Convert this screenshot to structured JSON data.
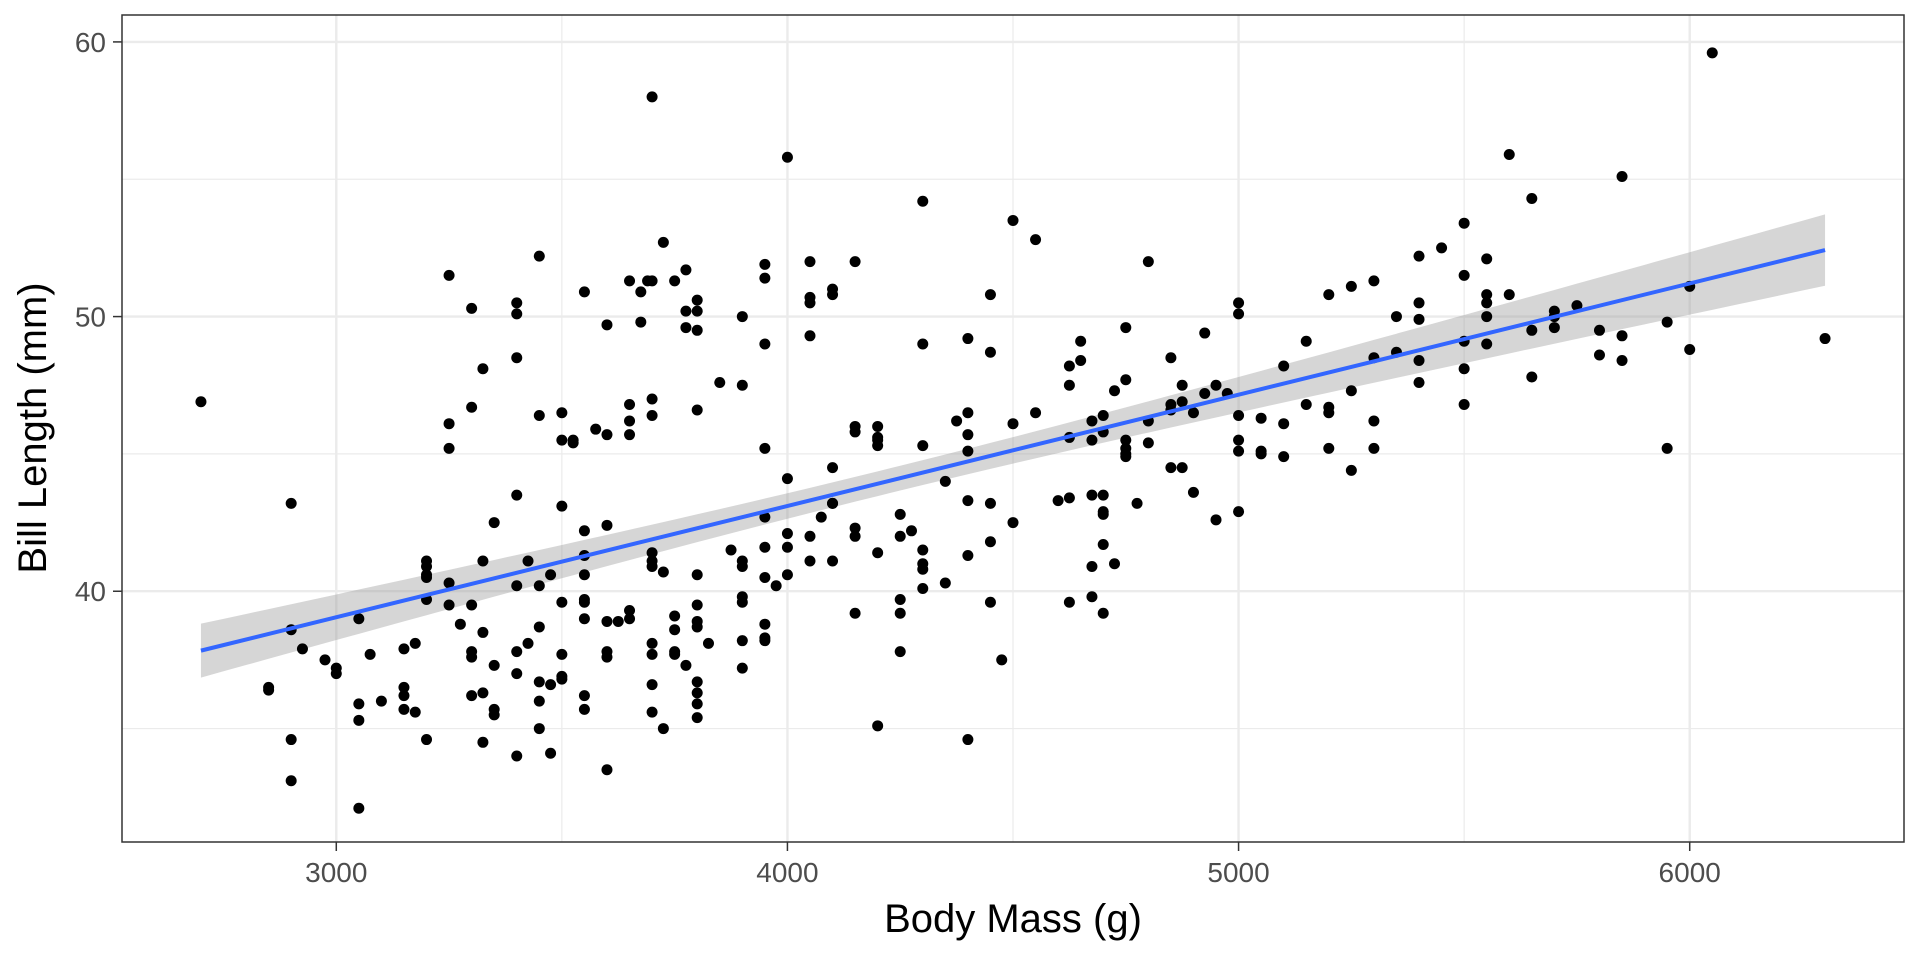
{
  "chart_data": {
    "type": "scatter",
    "title": "",
    "xlabel": "Body Mass (g)",
    "ylabel": "Bill Length (mm)",
    "xlim": [
      2525,
      6475
    ],
    "ylim": [
      30.87,
      60.98
    ],
    "x_ticks": [
      3000,
      4000,
      5000,
      6000
    ],
    "x_tick_labels": [
      "3000",
      "4000",
      "5000",
      "6000"
    ],
    "y_ticks": [
      40,
      50,
      60
    ],
    "y_tick_labels": [
      "40",
      "50",
      "60"
    ],
    "grid": true,
    "legend": "none",
    "colors": {
      "points": "#000000",
      "line": "#3366FF",
      "ribbon": "#999999",
      "grid": "#EBEBEB",
      "panel_border": "#333333"
    },
    "regression": {
      "method": "lm",
      "intercept": 26.9,
      "slope": 0.004051,
      "x_range": [
        2700,
        6300
      ],
      "se_halfwidth_center": 0.45,
      "se_x_mean": 4202,
      "se_k": 3.37e-07
    },
    "points": [
      [
        2700,
        46.9
      ],
      [
        2850,
        36.5
      ],
      [
        2850,
        36.4
      ],
      [
        2900,
        43.2
      ],
      [
        2900,
        38.6
      ],
      [
        2900,
        34.6
      ],
      [
        2900,
        33.1
      ],
      [
        2925,
        37.9
      ],
      [
        2975,
        37.5
      ],
      [
        3000,
        37.2
      ],
      [
        3000,
        37.0
      ],
      [
        3050,
        39.0
      ],
      [
        3050,
        35.9
      ],
      [
        3050,
        35.3
      ],
      [
        3050,
        32.1
      ],
      [
        3075,
        37.7
      ],
      [
        3100,
        36.0
      ],
      [
        3150,
        37.9
      ],
      [
        3150,
        36.5
      ],
      [
        3150,
        36.2
      ],
      [
        3150,
        35.7
      ],
      [
        3175,
        38.1
      ],
      [
        3175,
        35.6
      ],
      [
        3200,
        41.1
      ],
      [
        3200,
        40.9
      ],
      [
        3200,
        40.6
      ],
      [
        3200,
        40.5
      ],
      [
        3200,
        39.7
      ],
      [
        3200,
        34.6
      ],
      [
        3250,
        51.5
      ],
      [
        3250,
        46.1
      ],
      [
        3250,
        45.2
      ],
      [
        3250,
        40.3
      ],
      [
        3250,
        39.5
      ],
      [
        3275,
        38.8
      ],
      [
        3300,
        50.3
      ],
      [
        3300,
        46.7
      ],
      [
        3300,
        39.5
      ],
      [
        3300,
        37.8
      ],
      [
        3300,
        37.6
      ],
      [
        3300,
        36.2
      ],
      [
        3325,
        48.1
      ],
      [
        3325,
        41.1
      ],
      [
        3325,
        38.5
      ],
      [
        3325,
        36.3
      ],
      [
        3325,
        34.5
      ],
      [
        3350,
        42.5
      ],
      [
        3350,
        37.3
      ],
      [
        3350,
        35.7
      ],
      [
        3350,
        35.5
      ],
      [
        3400,
        50.5
      ],
      [
        3400,
        50.1
      ],
      [
        3400,
        48.5
      ],
      [
        3400,
        43.5
      ],
      [
        3400,
        40.2
      ],
      [
        3400,
        37.8
      ],
      [
        3400,
        37.0
      ],
      [
        3400,
        34.0
      ],
      [
        3425,
        41.1
      ],
      [
        3425,
        38.1
      ],
      [
        3450,
        52.2
      ],
      [
        3450,
        46.4
      ],
      [
        3450,
        40.2
      ],
      [
        3450,
        38.7
      ],
      [
        3450,
        36.7
      ],
      [
        3450,
        36.0
      ],
      [
        3450,
        35.0
      ],
      [
        3475,
        40.6
      ],
      [
        3475,
        36.6
      ],
      [
        3475,
        34.1
      ],
      [
        3500,
        46.5
      ],
      [
        3500,
        45.5
      ],
      [
        3500,
        43.1
      ],
      [
        3500,
        39.6
      ],
      [
        3500,
        37.7
      ],
      [
        3500,
        36.9
      ],
      [
        3500,
        36.8
      ],
      [
        3525,
        45.5
      ],
      [
        3525,
        45.4
      ],
      [
        3550,
        50.9
      ],
      [
        3550,
        42.2
      ],
      [
        3550,
        41.3
      ],
      [
        3550,
        40.6
      ],
      [
        3550,
        39.7
      ],
      [
        3550,
        39.6
      ],
      [
        3550,
        39.0
      ],
      [
        3550,
        36.2
      ],
      [
        3550,
        35.7
      ],
      [
        3575,
        45.9
      ],
      [
        3600,
        49.7
      ],
      [
        3600,
        45.7
      ],
      [
        3600,
        42.4
      ],
      [
        3600,
        38.9
      ],
      [
        3600,
        37.8
      ],
      [
        3600,
        37.6
      ],
      [
        3600,
        33.5
      ],
      [
        3625,
        38.9
      ],
      [
        3650,
        51.3
      ],
      [
        3650,
        46.8
      ],
      [
        3650,
        46.2
      ],
      [
        3650,
        45.7
      ],
      [
        3650,
        39.3
      ],
      [
        3650,
        39.0
      ],
      [
        3675,
        50.9
      ],
      [
        3675,
        49.8
      ],
      [
        3690,
        51.3
      ],
      [
        3700,
        58.0
      ],
      [
        3700,
        51.3
      ],
      [
        3700,
        47.0
      ],
      [
        3700,
        46.4
      ],
      [
        3700,
        41.4
      ],
      [
        3700,
        41.1
      ],
      [
        3700,
        40.9
      ],
      [
        3700,
        38.1
      ],
      [
        3700,
        37.7
      ],
      [
        3700,
        36.6
      ],
      [
        3700,
        35.6
      ],
      [
        3725,
        52.7
      ],
      [
        3725,
        40.7
      ],
      [
        3725,
        35.0
      ],
      [
        3750,
        51.3
      ],
      [
        3750,
        39.1
      ],
      [
        3750,
        38.6
      ],
      [
        3750,
        37.8
      ],
      [
        3750,
        37.7
      ],
      [
        3775,
        51.7
      ],
      [
        3775,
        50.2
      ],
      [
        3775,
        49.6
      ],
      [
        3775,
        37.3
      ],
      [
        3800,
        50.6
      ],
      [
        3800,
        50.2
      ],
      [
        3800,
        49.5
      ],
      [
        3800,
        46.6
      ],
      [
        3800,
        40.6
      ],
      [
        3800,
        39.5
      ],
      [
        3800,
        38.9
      ],
      [
        3800,
        38.7
      ],
      [
        3800,
        36.7
      ],
      [
        3800,
        36.3
      ],
      [
        3800,
        35.9
      ],
      [
        3800,
        35.4
      ],
      [
        3825,
        38.1
      ],
      [
        3850,
        47.6
      ],
      [
        3875,
        41.5
      ],
      [
        3900,
        50.0
      ],
      [
        3900,
        47.5
      ],
      [
        3900,
        41.1
      ],
      [
        3900,
        40.9
      ],
      [
        3900,
        39.8
      ],
      [
        3900,
        39.6
      ],
      [
        3900,
        38.2
      ],
      [
        3900,
        37.2
      ],
      [
        3950,
        51.9
      ],
      [
        3950,
        51.4
      ],
      [
        3950,
        49.0
      ],
      [
        3950,
        45.2
      ],
      [
        3950,
        42.7
      ],
      [
        3950,
        41.6
      ],
      [
        3950,
        40.5
      ],
      [
        3950,
        38.8
      ],
      [
        3950,
        38.3
      ],
      [
        3950,
        38.2
      ],
      [
        3975,
        40.2
      ],
      [
        4000,
        55.8
      ],
      [
        4000,
        44.1
      ],
      [
        4000,
        42.1
      ],
      [
        4000,
        41.6
      ],
      [
        4000,
        40.6
      ],
      [
        4050,
        52.0
      ],
      [
        4050,
        50.7
      ],
      [
        4050,
        50.5
      ],
      [
        4050,
        49.3
      ],
      [
        4050,
        42.0
      ],
      [
        4050,
        41.1
      ],
      [
        4075,
        42.7
      ],
      [
        4100,
        51.0
      ],
      [
        4100,
        50.8
      ],
      [
        4100,
        44.5
      ],
      [
        4100,
        43.2
      ],
      [
        4100,
        43.2
      ],
      [
        4100,
        41.1
      ],
      [
        4150,
        52.0
      ],
      [
        4150,
        46.0
      ],
      [
        4150,
        45.8
      ],
      [
        4150,
        42.3
      ],
      [
        4150,
        42.0
      ],
      [
        4150,
        39.2
      ],
      [
        4200,
        46.0
      ],
      [
        4200,
        45.6
      ],
      [
        4200,
        45.5
      ],
      [
        4200,
        45.3
      ],
      [
        4200,
        41.4
      ],
      [
        4200,
        35.1
      ],
      [
        4250,
        42.8
      ],
      [
        4250,
        42.0
      ],
      [
        4250,
        39.7
      ],
      [
        4250,
        39.2
      ],
      [
        4250,
        37.8
      ],
      [
        4275,
        42.2
      ],
      [
        4300,
        54.2
      ],
      [
        4300,
        49.0
      ],
      [
        4300,
        45.3
      ],
      [
        4300,
        41.5
      ],
      [
        4300,
        41.0
      ],
      [
        4300,
        40.8
      ],
      [
        4300,
        40.1
      ],
      [
        4350,
        44.0
      ],
      [
        4350,
        40.3
      ],
      [
        4375,
        46.2
      ],
      [
        4400,
        49.2
      ],
      [
        4400,
        46.5
      ],
      [
        4400,
        45.7
      ],
      [
        4400,
        45.1
      ],
      [
        4400,
        43.3
      ],
      [
        4400,
        41.3
      ],
      [
        4400,
        34.6
      ],
      [
        4450,
        50.8
      ],
      [
        4450,
        48.7
      ],
      [
        4450,
        43.2
      ],
      [
        4450,
        41.8
      ],
      [
        4450,
        39.6
      ],
      [
        4475,
        37.5
      ],
      [
        4500,
        53.5
      ],
      [
        4500,
        46.1
      ],
      [
        4500,
        42.5
      ],
      [
        4550,
        52.8
      ],
      [
        4550,
        46.5
      ],
      [
        4600,
        43.3
      ],
      [
        4625,
        48.2
      ],
      [
        4625,
        47.5
      ],
      [
        4625,
        45.6
      ],
      [
        4625,
        43.4
      ],
      [
        4625,
        39.6
      ],
      [
        4650,
        49.1
      ],
      [
        4650,
        48.4
      ],
      [
        4675,
        46.2
      ],
      [
        4675,
        45.5
      ],
      [
        4675,
        43.5
      ],
      [
        4675,
        40.9
      ],
      [
        4675,
        39.8
      ],
      [
        4700,
        39.2
      ],
      [
        4700,
        46.4
      ],
      [
        4700,
        45.8
      ],
      [
        4700,
        43.5
      ],
      [
        4700,
        42.9
      ],
      [
        4700,
        42.8
      ],
      [
        4700,
        41.7
      ],
      [
        4725,
        47.3
      ],
      [
        4725,
        41.0
      ],
      [
        4750,
        49.6
      ],
      [
        4750,
        47.7
      ],
      [
        4750,
        45.5
      ],
      [
        4750,
        45.2
      ],
      [
        4750,
        45.0
      ],
      [
        4750,
        44.9
      ],
      [
        4775,
        43.2
      ],
      [
        4800,
        52.0
      ],
      [
        4800,
        46.2
      ],
      [
        4800,
        45.4
      ],
      [
        4850,
        48.5
      ],
      [
        4850,
        46.8
      ],
      [
        4850,
        46.6
      ],
      [
        4850,
        44.5
      ],
      [
        4875,
        47.5
      ],
      [
        4875,
        46.9
      ],
      [
        4875,
        44.5
      ],
      [
        4900,
        46.5
      ],
      [
        4900,
        43.6
      ],
      [
        4925,
        49.4
      ],
      [
        4925,
        47.2
      ],
      [
        4950,
        47.5
      ],
      [
        4950,
        42.6
      ],
      [
        4975,
        47.2
      ],
      [
        5000,
        50.5
      ],
      [
        5000,
        50.1
      ],
      [
        5000,
        46.4
      ],
      [
        5000,
        45.5
      ],
      [
        5000,
        45.1
      ],
      [
        5000,
        42.9
      ],
      [
        5050,
        46.3
      ],
      [
        5050,
        45.1
      ],
      [
        5050,
        45.0
      ],
      [
        5100,
        48.2
      ],
      [
        5100,
        46.1
      ],
      [
        5100,
        44.9
      ],
      [
        5150,
        49.1
      ],
      [
        5150,
        46.8
      ],
      [
        5200,
        50.8
      ],
      [
        5200,
        46.7
      ],
      [
        5200,
        46.5
      ],
      [
        5200,
        45.2
      ],
      [
        5250,
        51.1
      ],
      [
        5250,
        47.3
      ],
      [
        5250,
        44.4
      ],
      [
        5300,
        51.3
      ],
      [
        5300,
        48.5
      ],
      [
        5300,
        46.2
      ],
      [
        5300,
        45.2
      ],
      [
        5350,
        50.0
      ],
      [
        5350,
        48.7
      ],
      [
        5400,
        52.2
      ],
      [
        5400,
        50.5
      ],
      [
        5400,
        49.9
      ],
      [
        5400,
        48.4
      ],
      [
        5400,
        47.6
      ],
      [
        5450,
        52.5
      ],
      [
        5500,
        53.4
      ],
      [
        5500,
        51.5
      ],
      [
        5500,
        49.1
      ],
      [
        5500,
        48.1
      ],
      [
        5500,
        46.8
      ],
      [
        5550,
        52.1
      ],
      [
        5550,
        50.8
      ],
      [
        5550,
        50.5
      ],
      [
        5550,
        50.0
      ],
      [
        5550,
        49.0
      ],
      [
        5600,
        55.9
      ],
      [
        5600,
        50.8
      ],
      [
        5650,
        54.3
      ],
      [
        5650,
        49.5
      ],
      [
        5650,
        47.8
      ],
      [
        5700,
        50.2
      ],
      [
        5700,
        50.0
      ],
      [
        5700,
        49.6
      ],
      [
        5750,
        50.4
      ],
      [
        5800,
        49.5
      ],
      [
        5800,
        48.6
      ],
      [
        5850,
        55.1
      ],
      [
        5850,
        49.3
      ],
      [
        5850,
        48.4
      ],
      [
        5950,
        49.8
      ],
      [
        5950,
        45.2
      ],
      [
        6000,
        51.1
      ],
      [
        6000,
        48.8
      ],
      [
        6050,
        59.6
      ],
      [
        6300,
        49.2
      ]
    ]
  }
}
